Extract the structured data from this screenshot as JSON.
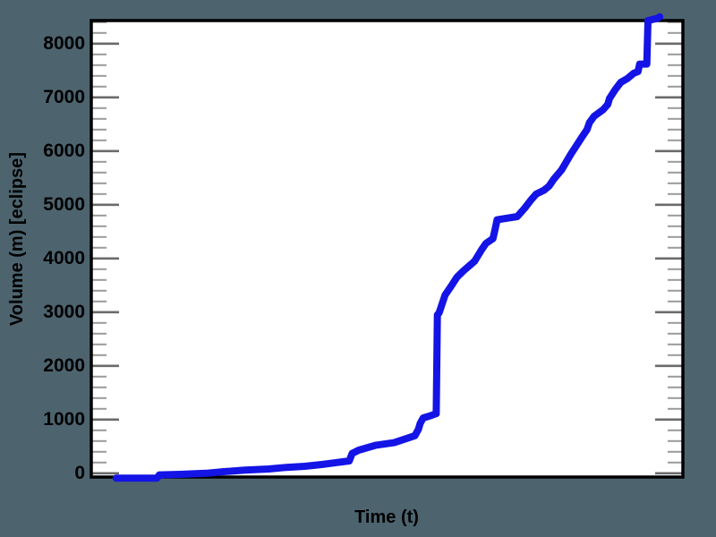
{
  "figure": {
    "background_color": "#4d646f",
    "plot_background": "#ffffff",
    "frame_color": "#000000"
  },
  "chart_data": {
    "type": "line",
    "title": "",
    "xlabel": "Time (t)",
    "ylabel": "Volume (m) [eclipse]",
    "xlim": [
      0,
      100
    ],
    "ylim": [
      -70,
      8430
    ],
    "yticks": [
      0,
      1000,
      2000,
      3000,
      4000,
      5000,
      6000,
      7000,
      8000
    ],
    "ytick_labels": [
      "0",
      "1000",
      "2000",
      "3000",
      "4000",
      "5000",
      "6000",
      "7000",
      "8000"
    ],
    "minor_tick_step": 200,
    "xticks": [],
    "grid": false,
    "legend": null,
    "line_color": "#1414e6",
    "line_width": 8,
    "tick_color_major": "#6b6b6b",
    "tick_color_minor": "#9a9a9a",
    "series": [
      {
        "name": "volume",
        "points": [
          [
            4.2,
            -90
          ],
          [
            11.1,
            -90
          ],
          [
            11.5,
            -30
          ],
          [
            15.0,
            -20
          ],
          [
            19.4,
            0
          ],
          [
            22.4,
            30
          ],
          [
            26.0,
            60
          ],
          [
            30.0,
            80
          ],
          [
            33.0,
            110
          ],
          [
            36.1,
            130
          ],
          [
            39.1,
            165
          ],
          [
            41.5,
            200
          ],
          [
            43.6,
            230
          ],
          [
            44.1,
            370
          ],
          [
            45.2,
            430
          ],
          [
            48.0,
            520
          ],
          [
            51.2,
            570
          ],
          [
            54.7,
            700
          ],
          [
            55.3,
            820
          ],
          [
            55.6,
            930
          ],
          [
            56.1,
            1030
          ],
          [
            57.3,
            1070
          ],
          [
            58.0,
            1100
          ],
          [
            58.3,
            1110
          ],
          [
            58.5,
            2950
          ],
          [
            58.8,
            2990
          ],
          [
            59.8,
            3320
          ],
          [
            60.8,
            3480
          ],
          [
            61.8,
            3650
          ],
          [
            62.9,
            3770
          ],
          [
            64.8,
            3950
          ],
          [
            65.9,
            4150
          ],
          [
            66.7,
            4280
          ],
          [
            67.9,
            4370
          ],
          [
            68.3,
            4570
          ],
          [
            68.6,
            4720
          ],
          [
            72.0,
            4780
          ],
          [
            73.2,
            4930
          ],
          [
            74.4,
            5100
          ],
          [
            75.2,
            5200
          ],
          [
            76.5,
            5270
          ],
          [
            77.4,
            5350
          ],
          [
            78.2,
            5480
          ],
          [
            79.5,
            5650
          ],
          [
            81.1,
            5950
          ],
          [
            82.0,
            6100
          ],
          [
            83.0,
            6270
          ],
          [
            83.8,
            6400
          ],
          [
            84.2,
            6530
          ],
          [
            85.0,
            6650
          ],
          [
            86.5,
            6770
          ],
          [
            87.3,
            6870
          ],
          [
            87.6,
            6980
          ],
          [
            88.6,
            7150
          ],
          [
            89.5,
            7280
          ],
          [
            90.6,
            7350
          ],
          [
            91.7,
            7450
          ],
          [
            92.4,
            7480
          ],
          [
            92.7,
            7620
          ],
          [
            93.9,
            7620
          ],
          [
            94.1,
            8430
          ],
          [
            95.6,
            8470
          ],
          [
            96.1,
            8500
          ]
        ]
      }
    ]
  }
}
